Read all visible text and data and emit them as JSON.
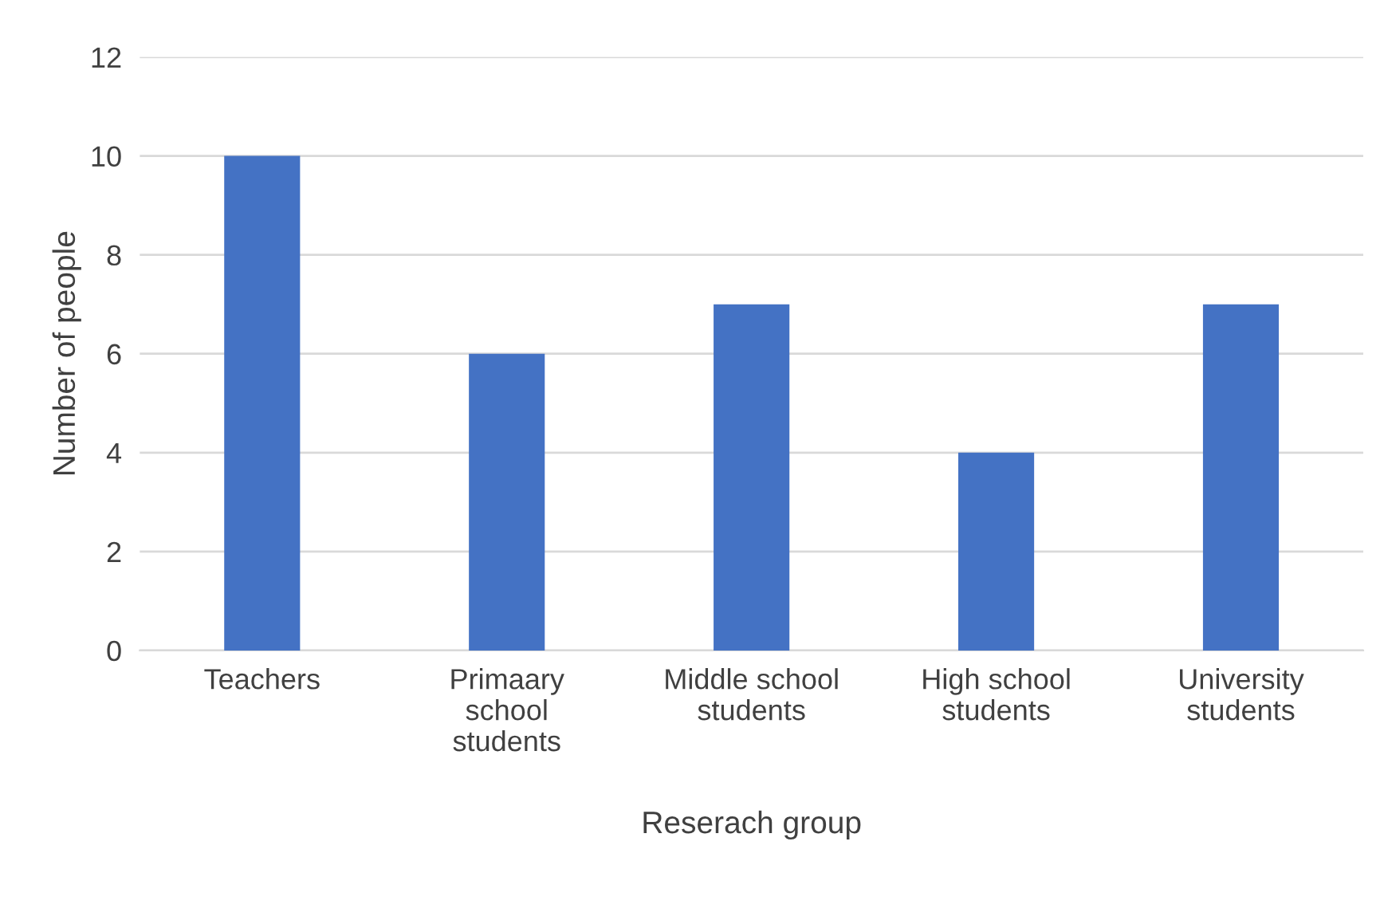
{
  "chart_data": {
    "type": "bar",
    "categories": [
      "Teachers",
      "Primaary\nschool\nstudents",
      "Middle school\nstudents",
      "High school\nstudents",
      "University\nstudents"
    ],
    "values": [
      10,
      6,
      7,
      4,
      7
    ],
    "color": "#4472c4",
    "xlabel": "Reserach group",
    "ylabel": "Number of people",
    "ylim": [
      0,
      12
    ],
    "yticks": [
      0,
      2,
      4,
      6,
      8,
      10,
      12
    ],
    "grid": "y"
  }
}
